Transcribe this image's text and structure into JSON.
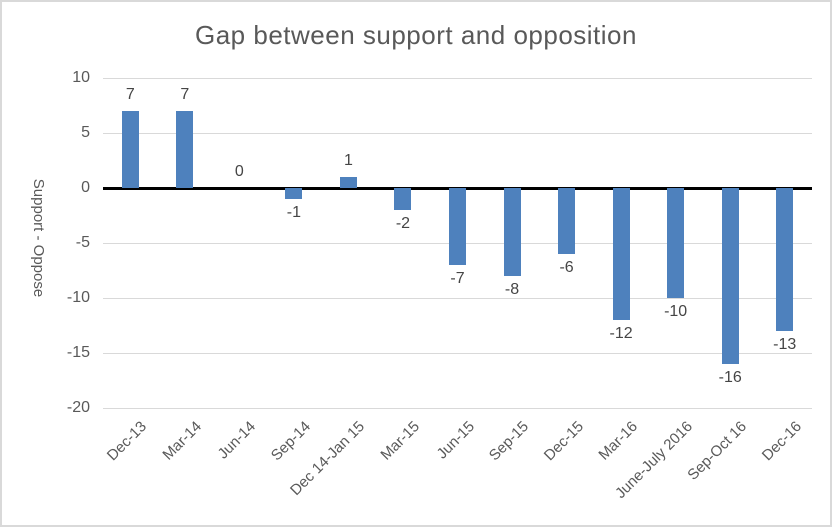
{
  "window": {
    "background": "#ffffff",
    "border_color": "#d9d9d9"
  },
  "chart_data": {
    "type": "bar",
    "title": "Gap between support and opposition",
    "xlabel": "",
    "ylabel": "Support - Oppose",
    "categories": [
      "Dec-13",
      "Mar-14",
      "Jun-14",
      "Sep-14",
      "Dec 14-Jan 15",
      "Mar-15",
      "Jun-15",
      "Sep-15",
      "Dec-15",
      "Mar-16",
      "June-July 2016",
      "Sep-Oct 16",
      "Dec-16"
    ],
    "values": [
      7,
      7,
      0,
      -1,
      1,
      -2,
      -7,
      -8,
      -6,
      -12,
      -10,
      -16,
      -13
    ],
    "ylim": [
      -20,
      10
    ],
    "yticks": [
      10,
      5,
      0,
      -5,
      -10,
      -15,
      -20
    ],
    "grid": true,
    "legend": "none",
    "data_labels": true,
    "bar_color": "#4e81bd",
    "gridline_color": "#d9d9d9",
    "zero_line_color": "#000000",
    "title_color": "#595959",
    "tick_label_color": "#595959",
    "data_label_color": "#454545"
  }
}
